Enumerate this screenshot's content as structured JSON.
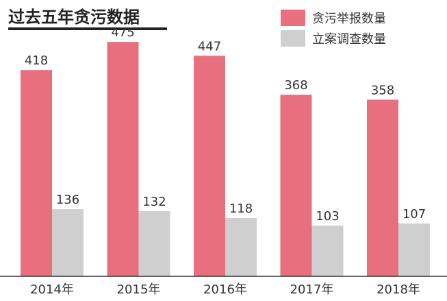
{
  "chart_data": {
    "type": "bar",
    "title": "过去五年贪污数据",
    "categories": [
      "2014年",
      "2015年",
      "2016年",
      "2017年",
      "2018年"
    ],
    "series": [
      {
        "name": "贪污举报数量",
        "color": "#e8707e",
        "values": [
          418,
          475,
          447,
          368,
          358
        ]
      },
      {
        "name": "立案调查数量",
        "color": "#cfcfcf",
        "values": [
          136,
          132,
          118,
          103,
          107
        ]
      }
    ],
    "ylim": [
      0,
      560
    ],
    "grid": false,
    "legend_position": "top-right"
  }
}
